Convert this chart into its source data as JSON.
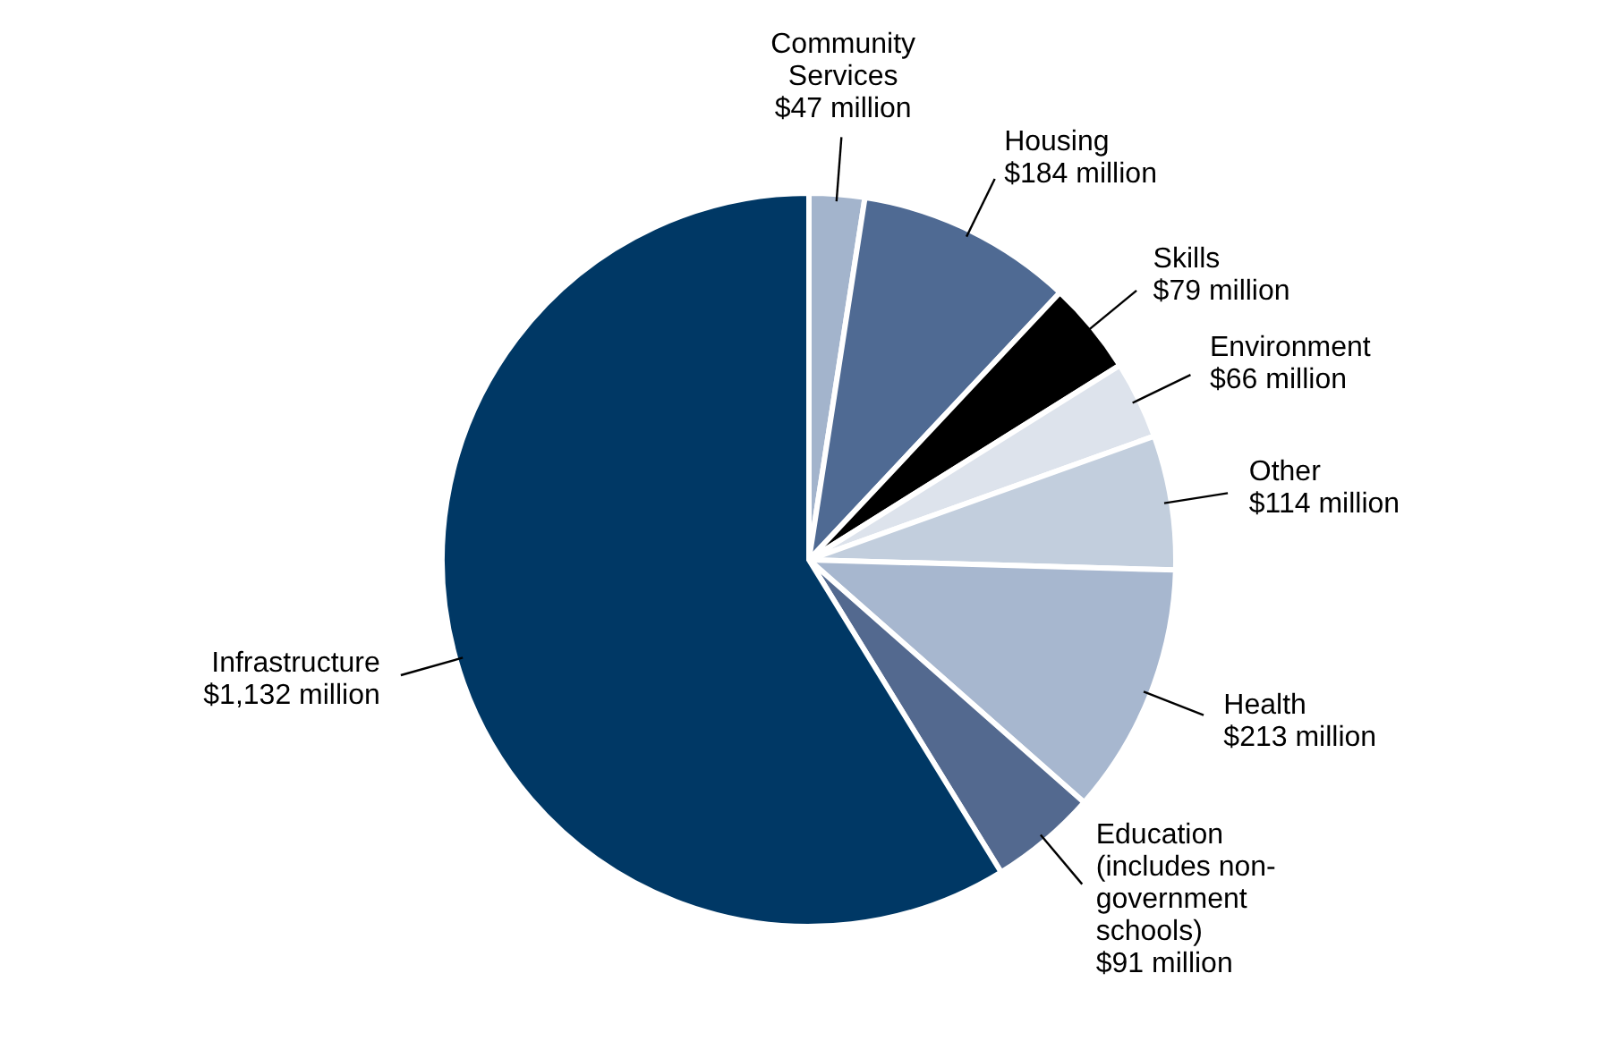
{
  "chart_data": {
    "type": "pie",
    "categories": [
      "Community Services",
      "Housing",
      "Skills",
      "Environment",
      "Other",
      "Health",
      "Education (includes non-government schools)",
      "Infrastructure"
    ],
    "values": [
      47,
      184,
      79,
      66,
      114,
      213,
      91,
      1132
    ],
    "colors": [
      "#a3b4cc",
      "#4f6a93",
      "#000000",
      "#dde3ec",
      "#c2cedd",
      "#a7b7cf",
      "#53698f",
      "#003865"
    ],
    "value_labels": [
      "$47 million",
      "$184 million",
      "$79 million",
      "$66 million",
      "$114 million",
      "$213 million",
      "$91 million",
      "$1,132 million"
    ]
  }
}
